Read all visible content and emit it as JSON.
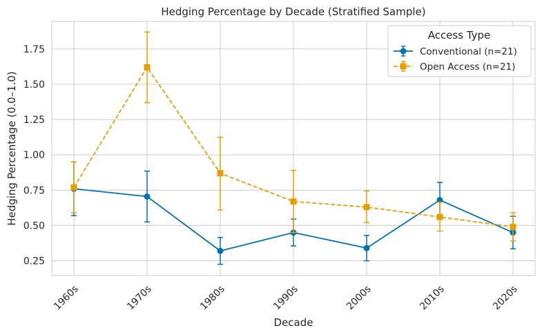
{
  "chart_data": {
    "type": "line",
    "title": "Hedging Percentage by Decade (Stratified Sample)",
    "xlabel": "Decade",
    "ylabel": "Hedging Percentage (0.0–1.0)",
    "categories": [
      "1960s",
      "1970s",
      "1980s",
      "1990s",
      "2000s",
      "2010s",
      "2020s"
    ],
    "ylim": [
      0.145,
      1.945
    ],
    "yticks": [
      0.25,
      0.5,
      0.75,
      1.0,
      1.25,
      1.5,
      1.75
    ],
    "ytick_labels": [
      "0.25",
      "0.50",
      "0.75",
      "1.00",
      "1.25",
      "1.50",
      "1.75"
    ],
    "grid": true,
    "legend": {
      "title": "Access Type",
      "placement": "top-right"
    },
    "series": [
      {
        "name": "Conventional (n=21)",
        "color": "#0072b2",
        "line_style": "solid",
        "marker": "circle",
        "values": [
          0.76,
          0.705,
          0.32,
          0.45,
          0.34,
          0.68,
          0.45
        ],
        "err_low": [
          0.57,
          0.525,
          0.225,
          0.355,
          0.25,
          0.555,
          0.335
        ],
        "err_high": [
          0.95,
          0.885,
          0.415,
          0.545,
          0.43,
          0.805,
          0.565
        ]
      },
      {
        "name": "Open Access (n=21)",
        "color": "#e69f00",
        "line_style": "dashed",
        "marker": "square",
        "values": [
          0.77,
          1.62,
          0.87,
          0.67,
          0.63,
          0.56,
          0.49
        ],
        "err_low": [
          0.59,
          1.37,
          0.61,
          0.45,
          0.52,
          0.46,
          0.39
        ],
        "err_high": [
          0.95,
          1.87,
          1.125,
          0.89,
          0.745,
          0.665,
          0.59
        ]
      }
    ]
  }
}
